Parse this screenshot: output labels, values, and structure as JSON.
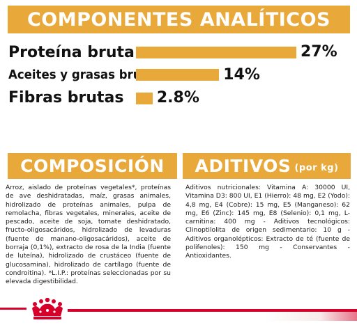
{
  "analiticos": {
    "title": "COMPONENTES ANALÍTICOS",
    "items": [
      {
        "label": "Proteína bruta",
        "value": 27,
        "value_text": "27%"
      },
      {
        "label": "Aceites y grasas brutos",
        "value": 14,
        "value_text": "14%"
      },
      {
        "label": "Fibras brutas",
        "value": 2.8,
        "value_text": "2.8%"
      }
    ]
  },
  "composicion": {
    "title": "COMPOSICIÓN",
    "text": "Arroz, aislado de proteínas vegetales*, proteínas de ave deshidratadas, maíz, grasas animales, hidrolizado de proteínas animales, pulpa de remolacha, fibras vegetales, minerales, aceite de pescado, aceite de soja, tomate deshidratado, fructo-oligosacáridos, hidrolizado de levaduras (fuente de manano-oligosacáridos), aceite de borraja (0,1%), extracto de rosa de la India (fuente de luteína), hidrolizado de crustáceo (fuente de glucosamina), hidrolizado de cartílago (fuente de condroitina). *L.I.P.: proteínas seleccionadas por su elevada digestibilidad."
  },
  "aditivos": {
    "title": "ADITIVOS",
    "title_suffix": "(por kg)",
    "text": "Aditivos nutricionales: Vitamina A: 30000 UI, Vitamina D3: 800 UI, E1 (Hierro): 48 mg, E2 (Yodo): 4,8 mg, E4 (Cobre): 15 mg, E5 (Manganeso): 62 mg, E6 (Zinc): 145 mg, E8 (Selenio): 0,1 mg, L-carnitina: 400 mg - Aditivos tecnológicos: Clinoptilolita de origen sedimentario: 10 g - Aditivos organolépticos: Extracto de té (fuente de polifenoles): 150 mg - Conservantes - Antioxidantes."
  },
  "colors": {
    "accent": "#e8a83a",
    "brand_red": "#d6002a"
  },
  "footer": {
    "logo_icon": "royal-canin-crown-icon"
  }
}
